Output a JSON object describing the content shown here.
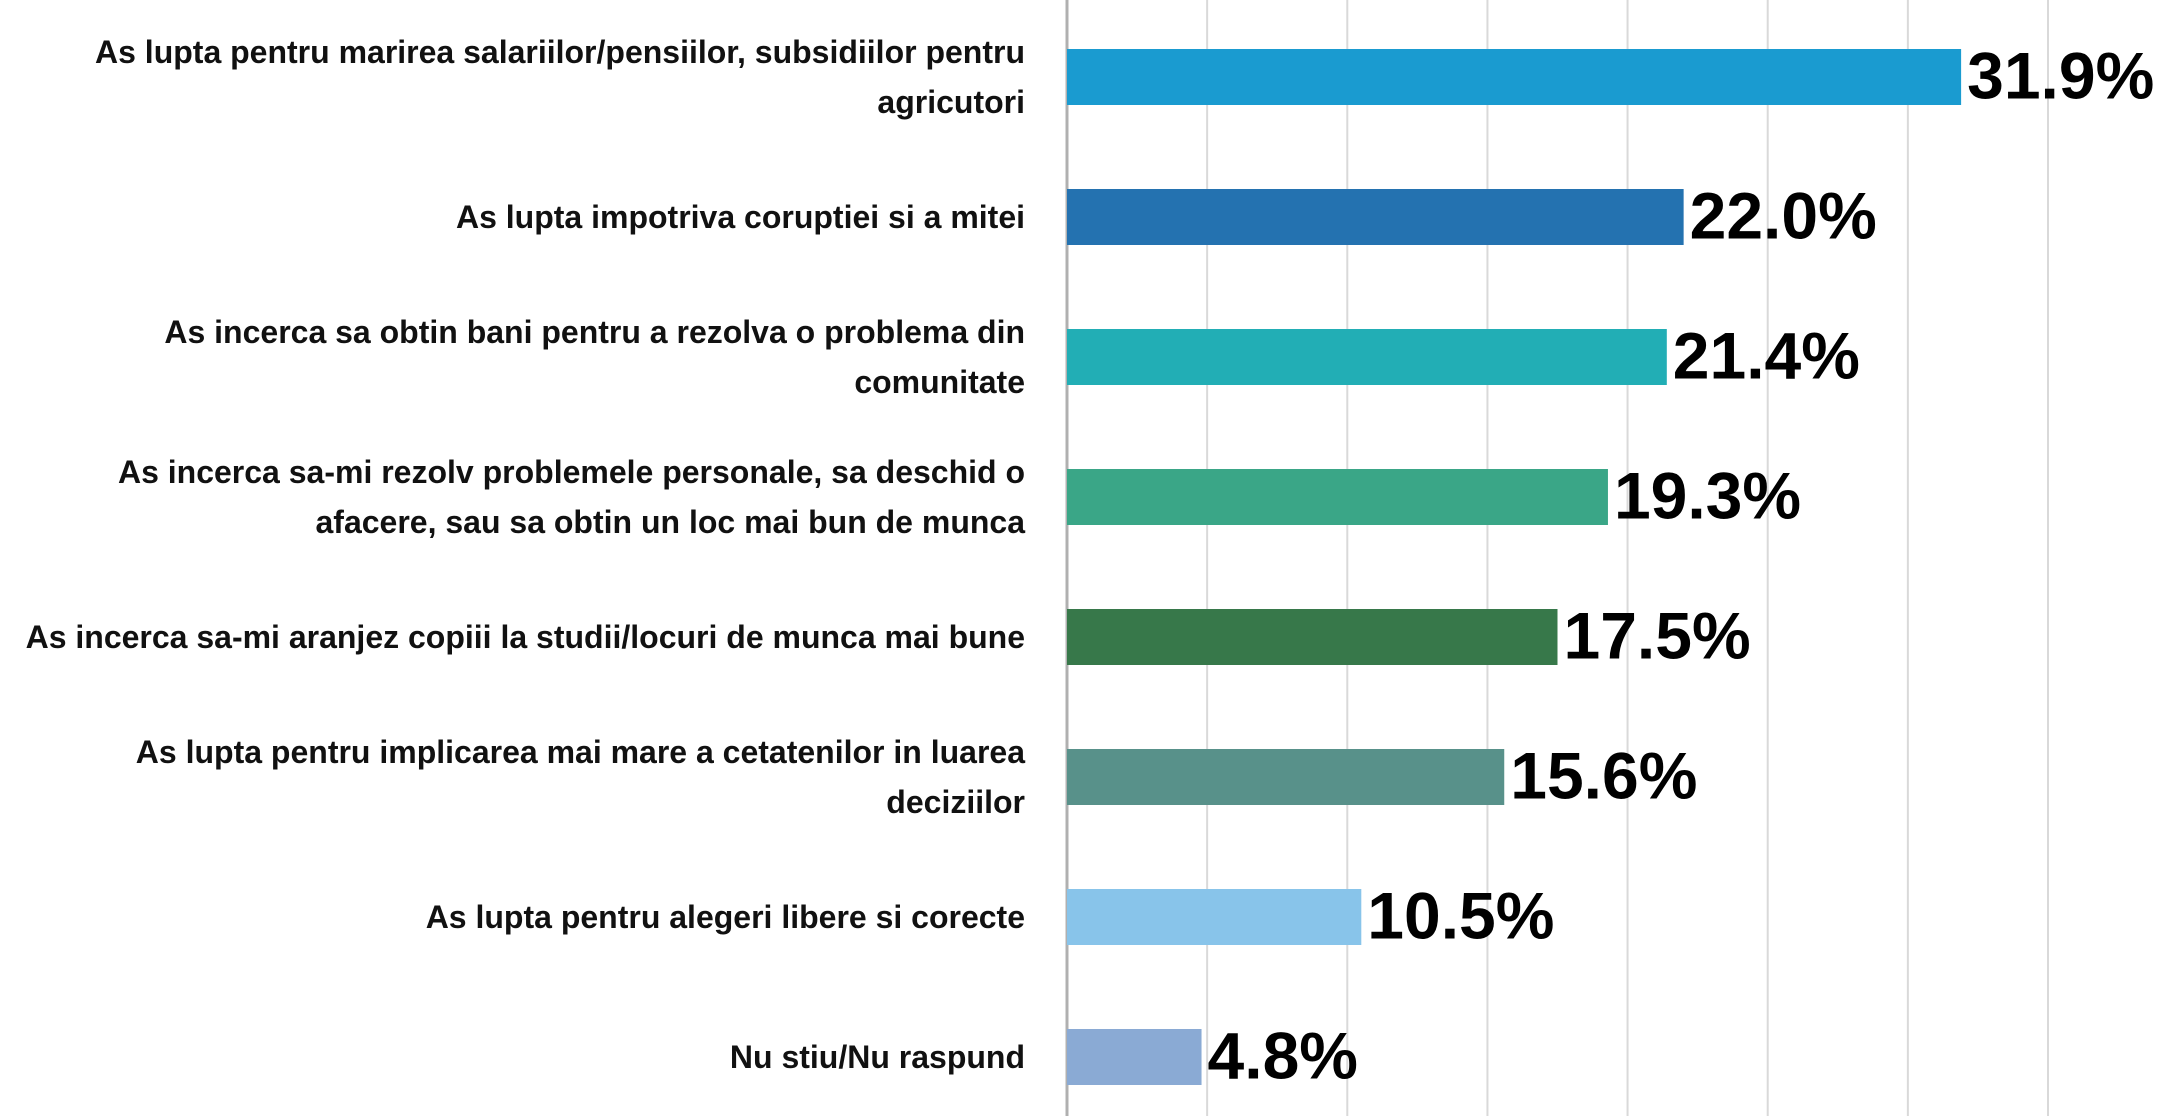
{
  "chart_data": {
    "type": "barh",
    "categories": [
      "As lupta pentru marirea salariilor/pensiilor, subsidiilor pentru agricutori",
      "As lupta impotriva coruptiei si a mitei",
      "As incerca sa obtin bani pentru a rezolva o problema din comunitate",
      "As incerca sa-mi rezolv problemele personale, sa deschid o afacere, sau sa obtin un loc mai bun de munca",
      "As incerca sa-mi aranjez copiii la studii/locuri de munca mai bune",
      "As lupta pentru implicarea mai mare a cetatenilor in luarea deciziilor",
      "As lupta pentru alegeri libere si corecte",
      "Nu stiu/Nu raspund"
    ],
    "values": [
      31.9,
      22.0,
      21.4,
      19.3,
      17.5,
      15.6,
      10.5,
      4.8
    ],
    "value_labels": [
      "31.9%",
      "22.0%",
      "21.4%",
      "19.3%",
      "17.5%",
      "15.6%",
      "10.5%",
      "4.8%"
    ],
    "colors": [
      "#1a9bd0",
      "#2472b0",
      "#22aeb5",
      "#3aa687",
      "#37784a",
      "#58918a",
      "#88c4ea",
      "#8aaad4"
    ],
    "xlim": [
      0,
      35
    ],
    "xticks": [
      0,
      5,
      10,
      15,
      20,
      25,
      30,
      35
    ],
    "grid": true
  }
}
